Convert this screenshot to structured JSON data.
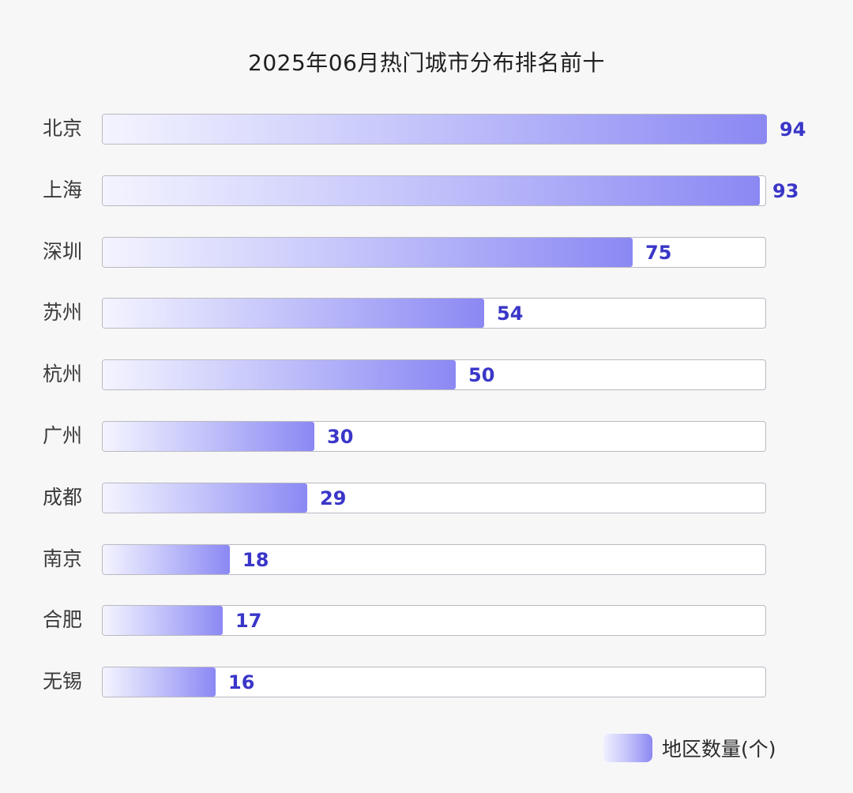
{
  "chart_data": {
    "type": "bar",
    "orientation": "horizontal",
    "title": "2025年06月热门城市分布排名前十",
    "categories": [
      "北京",
      "上海",
      "深圳",
      "苏州",
      "杭州",
      "广州",
      "成都",
      "南京",
      "合肥",
      "无锡"
    ],
    "series": [
      {
        "name": "地区数量(个)",
        "values": [
          94,
          93,
          75,
          54,
          50,
          30,
          29,
          18,
          17,
          16
        ]
      }
    ],
    "xlim": [
      0,
      94
    ],
    "grid": false,
    "legend_position": "bottom-right",
    "colors": {
      "bar_start": "#f4f4ff",
      "bar_end": "#8b88f3",
      "value_label": "#3a36c8"
    }
  }
}
